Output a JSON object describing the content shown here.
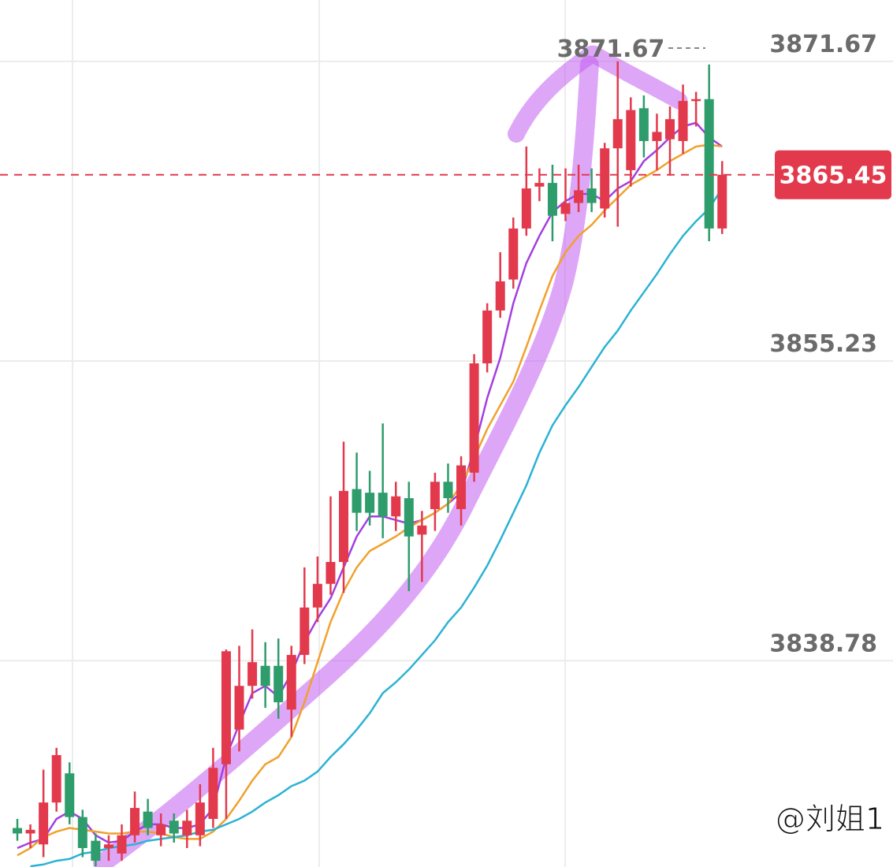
{
  "chart_data": {
    "type": "candlestick",
    "open": [
      3829.6,
      3829.3,
      3828.7,
      3831.0,
      3832.6,
      3830.2,
      3828.9,
      3828.5,
      3828.2,
      3829.2,
      3830.5,
      3829.2,
      3830.0,
      3829.2,
      3829.2,
      3830.1,
      3833.1,
      3835.0,
      3837.4,
      3838.5,
      3838.5,
      3836.1,
      3839.1,
      3841.7,
      3843.0,
      3844.2,
      3848.2,
      3848.0,
      3848.0,
      3846.7,
      3847.7,
      3845.7,
      3847.1,
      3848.6,
      3847.1,
      3849.1,
      3855.1,
      3858.0,
      3859.7,
      3862.5,
      3864.8,
      3865.0,
      3863.3,
      3863.9,
      3864.7,
      3863.6,
      3866.9,
      3865.7,
      3869.1,
      3867.3,
      3867.4,
      3867.3,
      3869.5,
      3869.6,
      3862.5
    ],
    "high": [
      3830.1,
      3829.8,
      3832.8,
      3834.0,
      3833.2,
      3830.6,
      3829.3,
      3829.2,
      3829.8,
      3831.6,
      3831.2,
      3830.4,
      3830.4,
      3830.6,
      3832.0,
      3834.0,
      3839.4,
      3839.6,
      3840.5,
      3839.8,
      3840.0,
      3839.6,
      3843.9,
      3844.5,
      3847.8,
      3850.8,
      3850.2,
      3849.2,
      3851.8,
      3848.6,
      3848.6,
      3847.0,
      3849.1,
      3849.6,
      3850.0,
      3855.6,
      3858.4,
      3861.2,
      3863.1,
      3867.0,
      3865.8,
      3866.0,
      3865.8,
      3866.0,
      3865.8,
      3867.2,
      3871.67,
      3869.7,
      3869.8,
      3868.8,
      3869.2,
      3870.4,
      3870.0,
      3871.5,
      3866.2
    ],
    "low": [
      3828.9,
      3828.5,
      3828.0,
      3830.5,
      3829.8,
      3828.0,
      3827.5,
      3827.8,
      3827.8,
      3828.8,
      3829.2,
      3828.6,
      3828.8,
      3828.5,
      3828.6,
      3829.6,
      3830.1,
      3833.8,
      3836.7,
      3836.2,
      3835.6,
      3834.6,
      3838.6,
      3840.9,
      3842.4,
      3842.5,
      3845.9,
      3846.2,
      3845.5,
      3845.9,
      3842.6,
      3843.1,
      3845.9,
      3846.9,
      3846.2,
      3848.6,
      3854.6,
      3857.6,
      3859.2,
      3862.1,
      3864.0,
      3861.8,
      3862.9,
      3863.4,
      3863.4,
      3863.1,
      3862.6,
      3864.8,
      3866.4,
      3865.7,
      3865.4,
      3866.6,
      3868.1,
      3861.8,
      3862.2
    ],
    "close": [
      3829.3,
      3829.5,
      3831.0,
      3833.6,
      3830.2,
      3828.5,
      3827.8,
      3828.7,
      3829.2,
      3830.7,
      3829.6,
      3829.8,
      3829.3,
      3830.0,
      3831.0,
      3832.9,
      3839.3,
      3837.4,
      3838.7,
      3837.4,
      3836.5,
      3839.1,
      3841.7,
      3843.0,
      3844.2,
      3848.1,
      3846.9,
      3846.9,
      3846.7,
      3847.8,
      3845.6,
      3846.2,
      3848.6,
      3847.7,
      3849.5,
      3855.1,
      3858.0,
      3859.6,
      3862.5,
      3864.7,
      3865.0,
      3863.2,
      3863.9,
      3864.6,
      3863.9,
      3866.9,
      3868.5,
      3869.0,
      3867.3,
      3867.8,
      3868.5,
      3869.5,
      3869.6,
      3862.5,
      3865.45
    ],
    "up_color": "#e23a4c",
    "down_color": "#2f9c6c",
    "moving_averages": [
      {
        "color": "#a43fe0",
        "values": [
          3828.5,
          3828.8,
          3829.0,
          3830.1,
          3830.5,
          3830.1,
          3829.2,
          3828.8,
          3828.9,
          3829.4,
          3829.8,
          3829.8,
          3829.6,
          3829.6,
          3829.8,
          3830.7,
          3833.5,
          3835.3,
          3837.0,
          3837.4,
          3836.8,
          3838.1,
          3839.8,
          3841.1,
          3842.2,
          3843.9,
          3845.6,
          3846.7,
          3846.7,
          3846.5,
          3846.3,
          3846.5,
          3846.9,
          3847.4,
          3848.0,
          3850.4,
          3853.2,
          3855.4,
          3858.4,
          3860.6,
          3862.1,
          3863.4,
          3864.0,
          3864.4,
          3864.4,
          3864.0,
          3864.7,
          3865.1,
          3866.2,
          3866.8,
          3867.5,
          3868.1,
          3868.3,
          3867.5,
          3867.0
        ]
      },
      {
        "color": "#f0a12c",
        "values": [
          3828.1,
          3828.5,
          3829.1,
          3829.4,
          3829.6,
          3829.5,
          3829.4,
          3829.3,
          3829.3,
          3829.4,
          3829.4,
          3829.3,
          3829.1,
          3829.0,
          3829.0,
          3829.4,
          3830.1,
          3831.1,
          3832.2,
          3833.1,
          3833.5,
          3834.6,
          3836.5,
          3838.7,
          3840.9,
          3842.6,
          3843.9,
          3844.8,
          3845.2,
          3845.6,
          3846.1,
          3846.5,
          3846.9,
          3847.4,
          3848.4,
          3849.9,
          3851.5,
          3852.8,
          3854.1,
          3856.0,
          3858.0,
          3859.9,
          3861.2,
          3862.1,
          3862.7,
          3863.5,
          3864.2,
          3864.9,
          3865.3,
          3865.7,
          3866.2,
          3866.6,
          3867.0,
          3867.1,
          3867.0
        ]
      },
      {
        "color": "#2cb2d4",
        "values": [
          null,
          3827.5,
          3827.6,
          3827.8,
          3827.9,
          3828.2,
          3828.3,
          3828.5,
          3828.6,
          3828.7,
          3828.9,
          3829.0,
          3829.1,
          3829.2,
          3829.4,
          3829.5,
          3829.8,
          3830.1,
          3830.5,
          3831.0,
          3831.4,
          3831.9,
          3832.2,
          3832.7,
          3833.5,
          3834.2,
          3835.0,
          3835.9,
          3837.0,
          3837.6,
          3838.3,
          3839.1,
          3839.9,
          3840.9,
          3841.7,
          3842.8,
          3844.0,
          3845.4,
          3846.9,
          3848.4,
          3850.2,
          3851.7,
          3852.8,
          3853.8,
          3854.9,
          3856.0,
          3856.9,
          3858.0,
          3859.0,
          3860.0,
          3861.1,
          3862.1,
          3862.9,
          3863.6,
          3864.7
        ]
      }
    ],
    "ylim": [
      3827.46,
      3875.04
    ],
    "yticks": [
      3838.78,
      3855.23,
      3871.67
    ],
    "grid": true,
    "watermark": "@刘姐1"
  }
}
